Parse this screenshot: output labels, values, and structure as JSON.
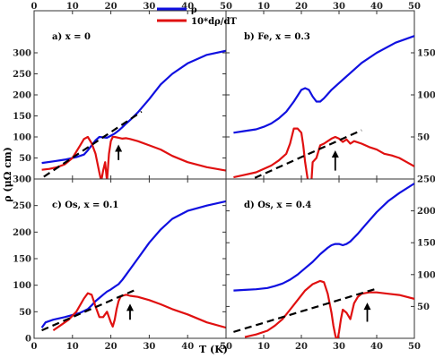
{
  "figure": {
    "xlabel": "T (K)",
    "ylabel": "ρ (μΩ cm)",
    "legend": {
      "rho_label": "ρ",
      "deriv_label": "10*dρ/dT",
      "rho_color": "#1010e0",
      "deriv_color": "#e01010"
    },
    "fit_line_color": "#000000",
    "arrow_color": "#000000"
  },
  "chart_data": [
    {
      "type": "line",
      "panel_label": "a) x = 0",
      "xlim": [
        0,
        50
      ],
      "ylim": [
        0,
        400
      ],
      "x_ticks": [
        "0",
        "10",
        "20",
        "30",
        "40",
        "50"
      ],
      "y_ticks": [
        "0",
        "50",
        "100",
        "150",
        "200",
        "250",
        "300"
      ],
      "series": [
        {
          "name": "ρ",
          "color": "#1010e0",
          "x": [
            2,
            5,
            8,
            11,
            13,
            14,
            15,
            16,
            17,
            18,
            19,
            20,
            21,
            22,
            23,
            24,
            25,
            27,
            30,
            33,
            36,
            40,
            45,
            50
          ],
          "y": [
            38,
            42,
            46,
            52,
            58,
            68,
            80,
            92,
            100,
            99,
            98,
            103,
            108,
            115,
            123,
            132,
            140,
            158,
            190,
            225,
            250,
            275,
            295,
            305
          ]
        },
        {
          "name": "10*dρ/dT",
          "color": "#e01010",
          "x": [
            2,
            4,
            6,
            8,
            10,
            12,
            13,
            14,
            15,
            16,
            17,
            17.5,
            18,
            18.5,
            19,
            19.5,
            20,
            20.5,
            21,
            22,
            23,
            24,
            25,
            27,
            30,
            33,
            36,
            40,
            45,
            50
          ],
          "y": [
            22,
            24,
            28,
            35,
            50,
            80,
            95,
            100,
            85,
            60,
            15,
            -5,
            20,
            40,
            -5,
            60,
            90,
            100,
            100,
            98,
            96,
            97,
            95,
            90,
            80,
            70,
            55,
            40,
            28,
            20
          ]
        }
      ],
      "dashed_fit": {
        "x": [
          0,
          28
        ],
        "y": [
          -10,
          160
        ]
      },
      "arrow": {
        "x": 22,
        "y_from": 45,
        "y_to": 82
      }
    },
    {
      "type": "line",
      "panel_label": "b) Fe, x = 0.3",
      "xlim": [
        0,
        50
      ],
      "ylim": [
        0,
        200
      ],
      "x_ticks": [
        "0",
        "10",
        "20",
        "30",
        "40",
        "50"
      ],
      "y_ticks": [
        "50",
        "100",
        "150"
      ],
      "series": [
        {
          "name": "ρ",
          "color": "#1010e0",
          "x": [
            2,
            5,
            8,
            10,
            12,
            14,
            16,
            18,
            20,
            21,
            22,
            23,
            24,
            25,
            26,
            27,
            28,
            30,
            33,
            36,
            40,
            45,
            50
          ],
          "y": [
            55,
            57,
            59,
            62,
            66,
            72,
            80,
            92,
            106,
            108,
            106,
            98,
            92,
            92,
            96,
            101,
            106,
            114,
            126,
            138,
            150,
            162,
            170
          ]
        },
        {
          "name": "10*dρ/dT",
          "color": "#e01010",
          "x": [
            2,
            5,
            8,
            10,
            12,
            14,
            16,
            17,
            18,
            19,
            20,
            20.5,
            21,
            21.5,
            22,
            22.5,
            23,
            24,
            25,
            26,
            27,
            28,
            29,
            30,
            31,
            32,
            33,
            34,
            36,
            38,
            40,
            42,
            44,
            46,
            48,
            50
          ],
          "y": [
            2,
            5,
            8,
            12,
            16,
            22,
            30,
            42,
            60,
            60,
            55,
            40,
            20,
            5,
            -10,
            -15,
            20,
            25,
            40,
            42,
            45,
            48,
            50,
            48,
            44,
            47,
            42,
            45,
            42,
            38,
            35,
            30,
            28,
            25,
            20,
            15
          ]
        }
      ],
      "dashed_fit": {
        "x": [
          2,
          36
        ],
        "y": [
          -10,
          58
        ]
      },
      "arrow": {
        "x": 29,
        "y_from": 10,
        "y_to": 34
      }
    },
    {
      "type": "line",
      "panel_label": "c) Os, x = 0.1",
      "xlim": [
        0,
        50
      ],
      "ylim": [
        0,
        300
      ],
      "x_ticks": [
        "0",
        "10",
        "20",
        "30",
        "40",
        "50"
      ],
      "y_ticks": [
        "0",
        "50",
        "100",
        "150",
        "200",
        "250",
        "300"
      ],
      "series": [
        {
          "name": "ρ",
          "color": "#1010e0",
          "x": [
            2,
            3,
            5,
            8,
            10,
            12,
            14,
            15,
            16,
            17,
            18,
            19,
            20,
            21,
            22,
            23,
            24,
            25,
            27,
            30,
            33,
            36,
            40,
            45,
            50
          ],
          "y": [
            20,
            30,
            35,
            40,
            44,
            48,
            55,
            62,
            70,
            76,
            82,
            88,
            92,
            97,
            102,
            110,
            120,
            130,
            150,
            180,
            205,
            225,
            240,
            250,
            258
          ]
        },
        {
          "name": "10*dρ/dT",
          "color": "#e01010",
          "x": [
            5,
            7,
            9,
            11,
            13,
            14,
            15,
            16,
            17,
            18,
            19,
            20,
            20.5,
            21,
            21.5,
            22,
            22.5,
            23,
            24,
            25,
            27,
            30,
            33,
            36,
            40,
            45,
            50
          ],
          "y": [
            15,
            25,
            35,
            50,
            75,
            85,
            82,
            60,
            40,
            40,
            50,
            30,
            22,
            35,
            55,
            70,
            78,
            80,
            82,
            80,
            78,
            72,
            64,
            55,
            45,
            30,
            20
          ]
        }
      ],
      "dashed_fit": {
        "x": [
          2,
          26
        ],
        "y": [
          15,
          90
        ]
      },
      "arrow": {
        "x": 25,
        "y_from": 35,
        "y_to": 65
      }
    },
    {
      "type": "line",
      "panel_label": "d) Os, x = 0.4",
      "xlim": [
        0,
        50
      ],
      "ylim": [
        0,
        250
      ],
      "x_ticks": [
        "0",
        "10",
        "20",
        "30",
        "40",
        "50"
      ],
      "y_ticks": [
        "50",
        "100",
        "150",
        "200",
        "250"
      ],
      "series": [
        {
          "name": "ρ",
          "color": "#1010e0",
          "x": [
            2,
            5,
            8,
            11,
            13,
            15,
            17,
            19,
            21,
            23,
            25,
            27,
            28,
            29,
            30,
            31,
            32,
            33,
            34,
            35,
            37,
            40,
            43,
            46,
            50
          ],
          "y": [
            75,
            76,
            77,
            79,
            82,
            86,
            92,
            100,
            110,
            120,
            132,
            142,
            146,
            148,
            148,
            146,
            148,
            152,
            158,
            164,
            178,
            198,
            215,
            228,
            243
          ]
        },
        {
          "name": "10*dρ/dT",
          "color": "#e01010",
          "x": [
            5,
            8,
            11,
            13,
            15,
            17,
            19,
            21,
            23,
            25,
            26,
            27,
            28,
            28.5,
            29,
            29.5,
            30,
            30.5,
            31,
            32,
            33,
            34,
            35,
            36,
            38,
            40,
            43,
            46,
            50
          ],
          "y": [
            2,
            6,
            12,
            20,
            30,
            45,
            60,
            75,
            85,
            90,
            88,
            70,
            40,
            20,
            5,
            -5,
            10,
            30,
            45,
            40,
            30,
            55,
            65,
            70,
            72,
            72,
            70,
            68,
            62
          ]
        }
      ],
      "dashed_fit": {
        "x": [
          2,
          40
        ],
        "y": [
          10,
          78
        ]
      },
      "arrow": {
        "x": 37.5,
        "y_from": 26,
        "y_to": 56
      }
    }
  ]
}
